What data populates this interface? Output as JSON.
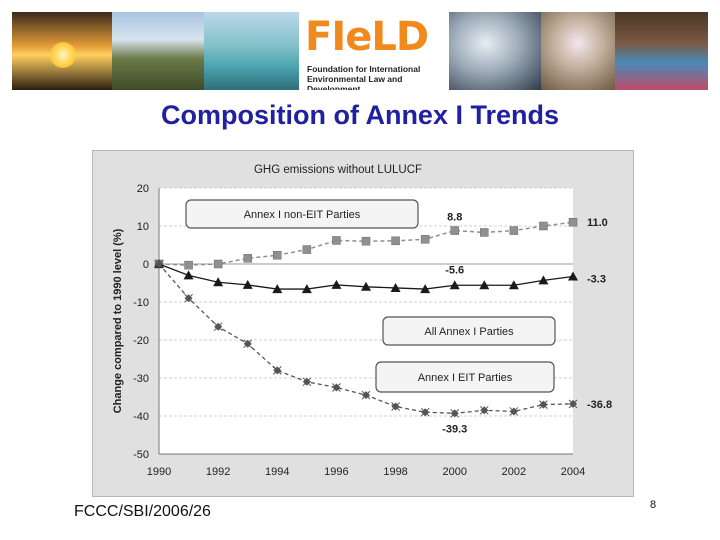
{
  "banner": {
    "logo_word": "FIeLD",
    "logo_line1": "Foundation for International",
    "logo_line2": "Environmental Law and Development"
  },
  "slide": {
    "title": "Composition of Annex I Trends",
    "footer": "FCCC/SBI/2006/26",
    "page_number": "8"
  },
  "colors": {
    "title": "#2020a0",
    "non_eit": "#909090",
    "all_annex": "#1a1a1a",
    "eit": "#555555",
    "plot_bg": "#ffffff"
  },
  "chart_data": {
    "type": "line",
    "title": "GHG emissions without LULUCF",
    "xlabel": "",
    "ylabel": "Change compared to 1990 level (%)",
    "x": [
      1990,
      1991,
      1992,
      1993,
      1994,
      1995,
      1996,
      1997,
      1998,
      1999,
      2000,
      2001,
      2002,
      2003,
      2004
    ],
    "x_ticks": [
      "1990",
      "1992",
      "1994",
      "1996",
      "1998",
      "2000",
      "2002",
      "2004"
    ],
    "y_ticks": [
      "20",
      "10",
      "0",
      "-10",
      "-20",
      "-30",
      "-40",
      "-50"
    ],
    "ylim": [
      -50,
      20
    ],
    "xlim": [
      1990,
      2004
    ],
    "grid": "horizontal",
    "series": [
      {
        "name": "Annex I non-EIT Parties",
        "marker": "square",
        "values": [
          0,
          -0.3,
          0,
          1.5,
          2.3,
          3.8,
          6.2,
          6.0,
          6.1,
          6.5,
          8.8,
          8.3,
          8.8,
          10.0,
          11.0
        ]
      },
      {
        "name": "All Annex I Parties",
        "marker": "triangle",
        "values": [
          0,
          -3.0,
          -4.8,
          -5.5,
          -6.6,
          -6.6,
          -5.5,
          -6.0,
          -6.3,
          -6.6,
          -5.6,
          -5.6,
          -5.6,
          -4.3,
          -3.3
        ]
      },
      {
        "name": "Annex I EIT Parties",
        "marker": "star",
        "values": [
          0,
          -9.0,
          -16.5,
          -21.0,
          -28.0,
          -31.0,
          -32.5,
          -34.5,
          -37.5,
          -39.0,
          -39.3,
          -38.5,
          -38.8,
          -37.0,
          -36.8
        ]
      }
    ],
    "annotations": [
      "8.8",
      "11.0",
      "-5.6",
      "-3.3",
      "-39.3",
      "-36.8"
    ]
  }
}
